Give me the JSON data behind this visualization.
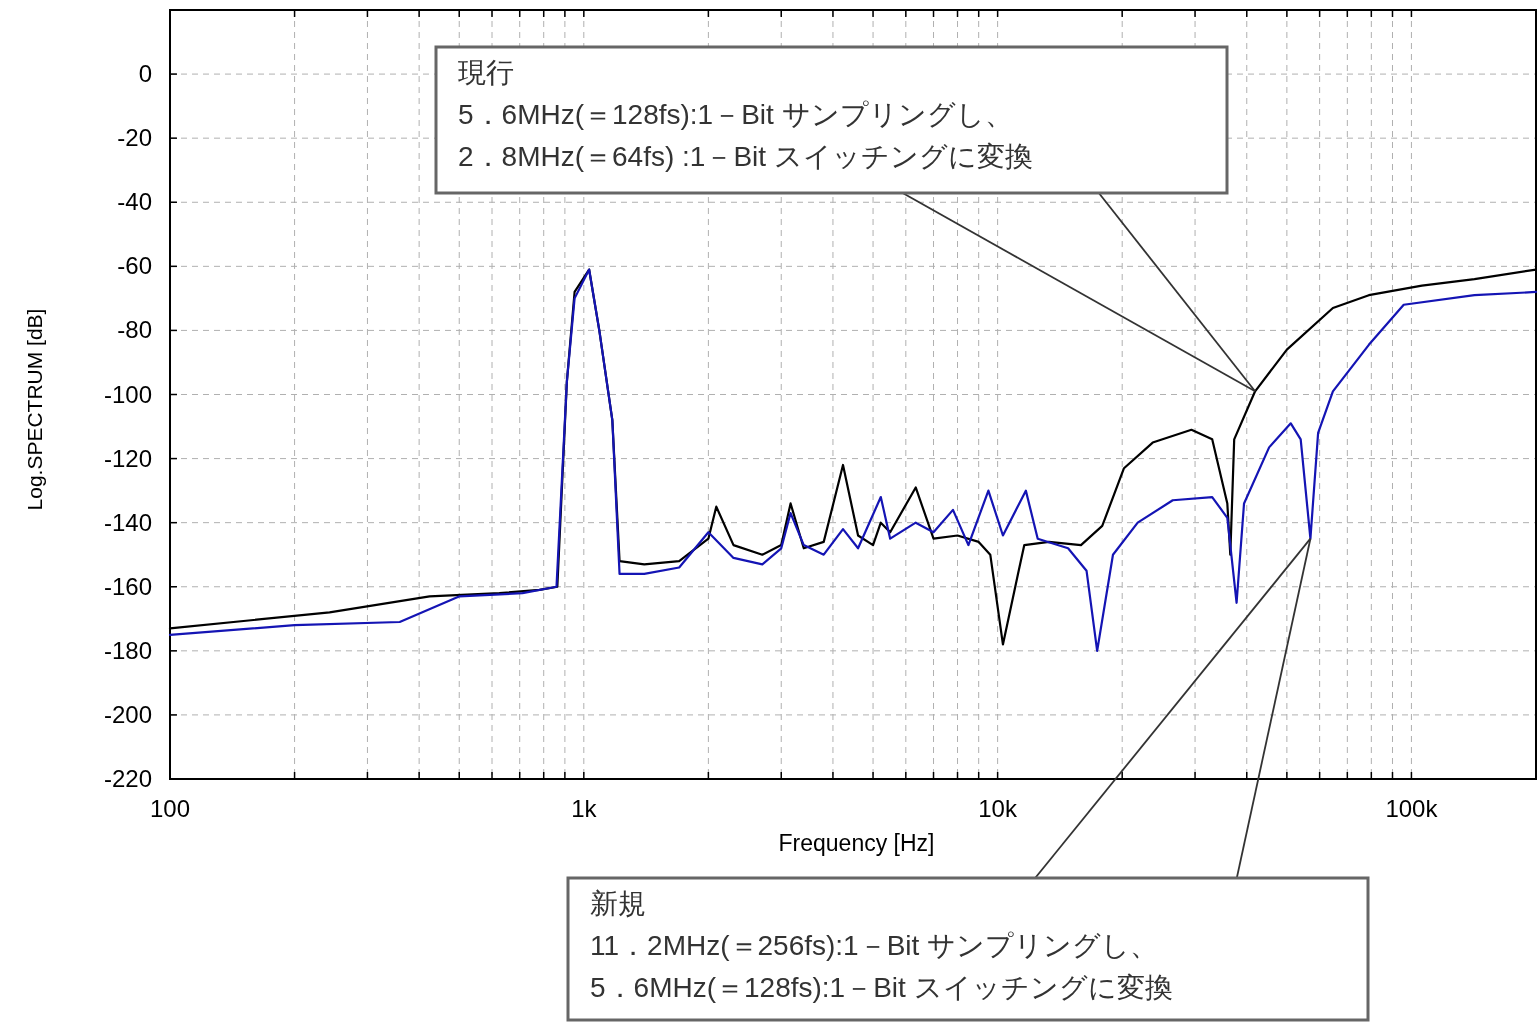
{
  "chart_data": {
    "type": "line",
    "xlabel": "Frequency [Hz]",
    "ylabel": "Log.SPECTRUM [dB]",
    "log": "x",
    "grid": true,
    "line_style": "solid",
    "xlim": [
      100,
      200000
    ],
    "ylim": [
      -220,
      20
    ],
    "xticks": [
      {
        "value": 100,
        "label": "100"
      },
      {
        "value": 200,
        "label": null
      },
      {
        "value": 300,
        "label": null
      },
      {
        "value": 400,
        "label": null
      },
      {
        "value": 500,
        "label": null
      },
      {
        "value": 600,
        "label": null
      },
      {
        "value": 700,
        "label": null
      },
      {
        "value": 800,
        "label": null
      },
      {
        "value": 900,
        "label": null
      },
      {
        "value": 1000,
        "label": "1k"
      },
      {
        "value": 2000,
        "label": null
      },
      {
        "value": 3000,
        "label": null
      },
      {
        "value": 4000,
        "label": null
      },
      {
        "value": 5000,
        "label": null
      },
      {
        "value": 6000,
        "label": null
      },
      {
        "value": 7000,
        "label": null
      },
      {
        "value": 8000,
        "label": null
      },
      {
        "value": 9000,
        "label": null
      },
      {
        "value": 10000,
        "label": "10k"
      },
      {
        "value": 20000,
        "label": null
      },
      {
        "value": 30000,
        "label": null
      },
      {
        "value": 40000,
        "label": null
      },
      {
        "value": 50000,
        "label": null
      },
      {
        "value": 60000,
        "label": null
      },
      {
        "value": 70000,
        "label": null
      },
      {
        "value": 80000,
        "label": null
      },
      {
        "value": 90000,
        "label": null
      },
      {
        "value": 100000,
        "label": "100k"
      },
      {
        "value": 200000,
        "label": null
      }
    ],
    "yticks": [
      0,
      -20,
      -40,
      -60,
      -80,
      -100,
      -120,
      -140,
      -160,
      -180,
      -200,
      -220
    ],
    "series": [
      {
        "color": "#000000",
        "x": [
          100,
          243,
          424,
          625,
          781,
          863,
          910,
          950,
          1030,
          1090,
          1172,
          1220,
          1400,
          1700,
          2000,
          2090,
          2300,
          2700,
          3000,
          3160,
          3400,
          3800,
          4230,
          4600,
          5000,
          5220,
          5500,
          6340,
          7000,
          8000,
          9000,
          9600,
          10300,
          11200,
          11600,
          13300,
          15900,
          17900,
          20200,
          23700,
          29400,
          33000,
          35900,
          36500,
          37300,
          41900,
          50000,
          64600,
          78900,
          106000,
          142000,
          200000
        ],
        "values": [
          -173,
          -168,
          -163,
          -162,
          -161,
          -160,
          -96,
          -68,
          -61,
          -80,
          -108,
          -152,
          -153,
          -152,
          -145,
          -135,
          -147,
          -150,
          -147,
          -134,
          -148,
          -146,
          -122,
          -144,
          -147,
          -140,
          -143,
          -129,
          -145,
          -144,
          -146,
          -150,
          -178,
          -156,
          -147,
          -146,
          -147,
          -141,
          -123,
          -115,
          -111,
          -114,
          -134,
          -150,
          -114,
          -99,
          -86,
          -73,
          -69,
          -66,
          -64,
          -61
        ]
      },
      {
        "color": "#1414b4",
        "x": [
          100,
          200,
          359,
          501,
          711,
          859,
          910,
          950,
          1030,
          1090,
          1172,
          1220,
          1400,
          1700,
          2000,
          2300,
          2700,
          3000,
          3160,
          3400,
          3800,
          4230,
          4600,
          5220,
          5500,
          6340,
          7000,
          7800,
          8500,
          9500,
          10300,
          11700,
          12500,
          14800,
          16400,
          17400,
          19000,
          21800,
          26500,
          33000,
          35900,
          37800,
          39400,
          45300,
          51100,
          54000,
          57000,
          59500,
          64600,
          78900,
          95800,
          142000,
          200000
        ],
        "values": [
          -175,
          -172,
          -171,
          -163,
          -162,
          -160,
          -96,
          -70,
          -61,
          -80,
          -108,
          -156,
          -156,
          -154,
          -143,
          -151,
          -153,
          -148,
          -137,
          -147,
          -150,
          -142,
          -148,
          -132,
          -145,
          -140,
          -143,
          -136,
          -147,
          -130,
          -144,
          -130,
          -145,
          -148,
          -155,
          -180,
          -150,
          -140,
          -133,
          -132,
          -138.5,
          -165,
          -134,
          -116.5,
          -109,
          -114,
          -145,
          -112,
          -99,
          -84.5,
          -72,
          -69,
          -68
        ]
      }
    ],
    "annotations": [
      {
        "text": "現行\n5．6MHz(＝128fs):1－Bit サンプリングし、\n2．8MHz(＝64fs) :1－Bit スイッチングに変換",
        "x": 41900,
        "y": -99
      },
      {
        "text": "新規\n11．2MHz(＝256fs):1－Bit サンプリングし、\n5．6MHz(＝128fs):1－Bit スイッチングに変換",
        "x": 57000,
        "y": -145
      }
    ]
  }
}
